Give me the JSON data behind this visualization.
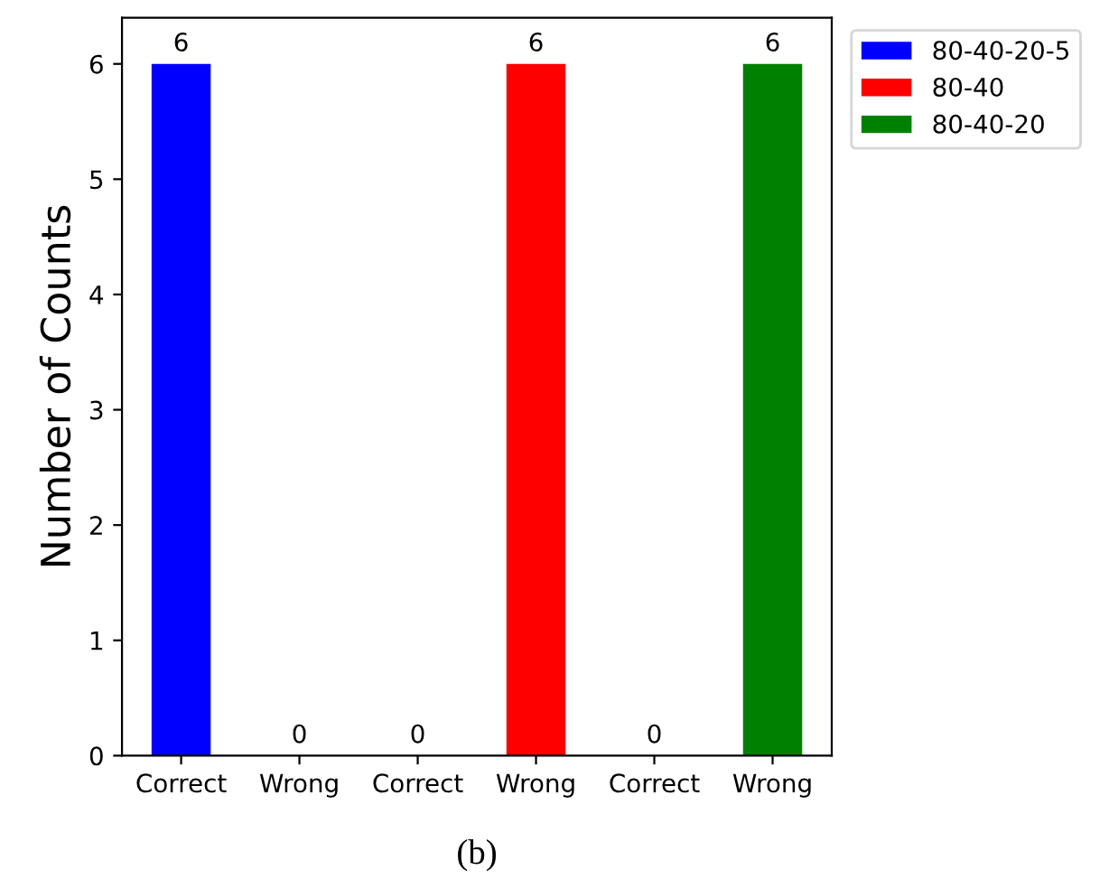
{
  "chart_data": {
    "type": "bar",
    "ylabel": "Number of Counts",
    "categories": [
      "Correct",
      "Wrong",
      "Correct",
      "Wrong",
      "Correct",
      "Wrong"
    ],
    "series": [
      {
        "name": "80-40-20-5",
        "color": "#0000ff",
        "values": [
          6,
          0,
          null,
          null,
          null,
          null
        ]
      },
      {
        "name": "80-40",
        "color": "#ff0000",
        "values": [
          null,
          null,
          0,
          6,
          null,
          null
        ]
      },
      {
        "name": "80-40-20",
        "color": "#008000",
        "values": [
          null,
          null,
          null,
          null,
          0,
          6
        ]
      }
    ],
    "ylim": [
      0,
      6.4
    ],
    "yticks": [
      0,
      1,
      2,
      3,
      4,
      5,
      6
    ],
    "data_labels": true,
    "grid": false,
    "legend": "top right",
    "annotations": [
      "(b)"
    ]
  }
}
